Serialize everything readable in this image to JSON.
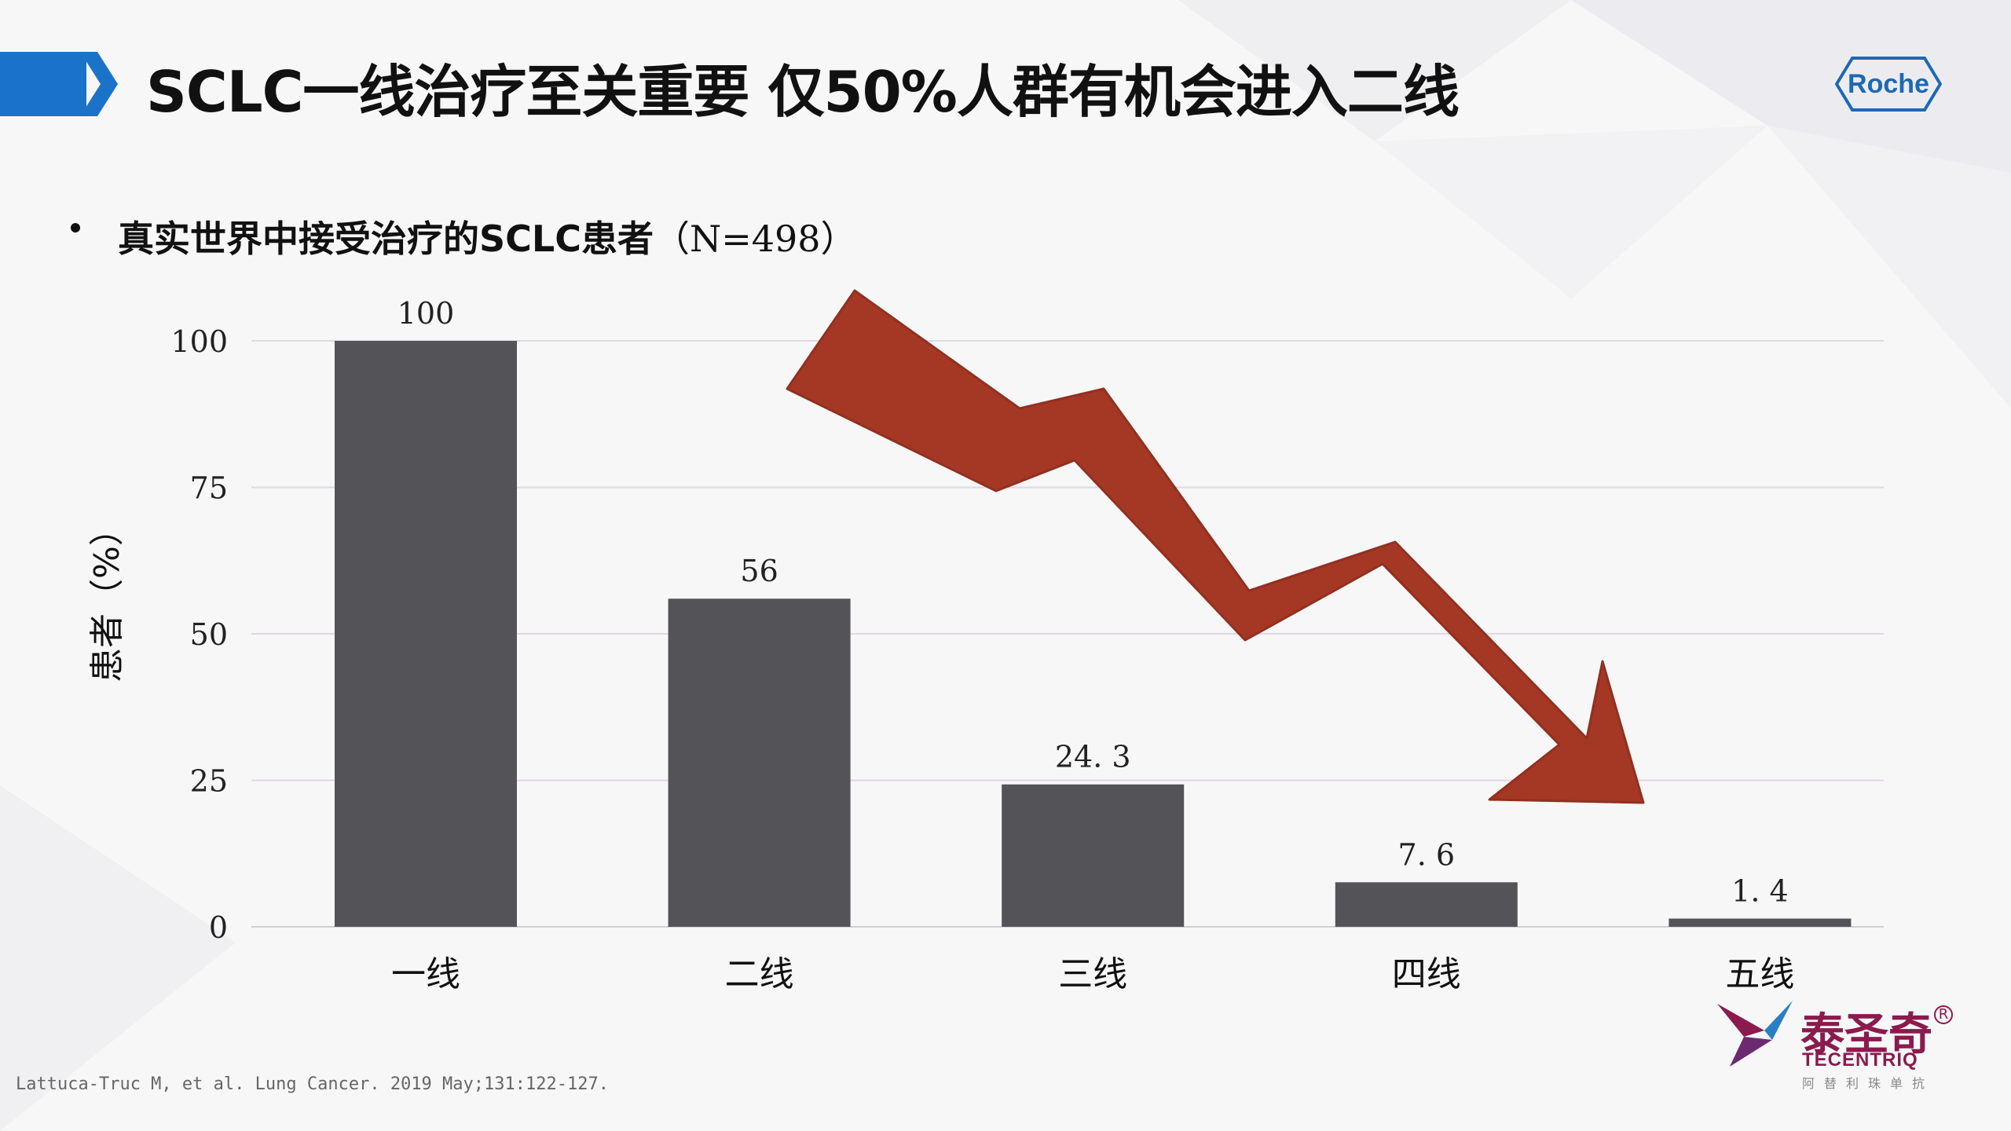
{
  "header": {
    "title": "SCLC一线治疗至关重要  仅50%人群有机会进入二线",
    "accent_color": "#1a73c9"
  },
  "logo_roche": {
    "text": "Roche",
    "color": "#1d69b5"
  },
  "subtitle": {
    "bold": "真实世界中接受治疗的SCLC患者",
    "normal": "（N=498）"
  },
  "chart_data": {
    "type": "bar",
    "categories": [
      "一线",
      "二线",
      "三线",
      "四线",
      "五线"
    ],
    "values": [
      100,
      56,
      24.3,
      7.6,
      1.4
    ],
    "value_labels": [
      "100",
      "56",
      "24. 3",
      "7. 6",
      "1. 4"
    ],
    "ylabel": "患者（%）",
    "xlabel": "",
    "ylim": [
      0,
      100
    ],
    "yticks": [
      0,
      25,
      50,
      75,
      100
    ],
    "grid": true,
    "bar_color": "#535358",
    "arrow_color": "#a3321f"
  },
  "citation": "Lattuca-Truc M, et al. Lung Cancer. 2019 May;131:122-127.",
  "brand": {
    "name_cn": "泰圣奇",
    "name_en": "TECENTRIQ",
    "sub_cn": "阿替利珠单抗",
    "reg": "R",
    "color": "#8b1a4d"
  }
}
